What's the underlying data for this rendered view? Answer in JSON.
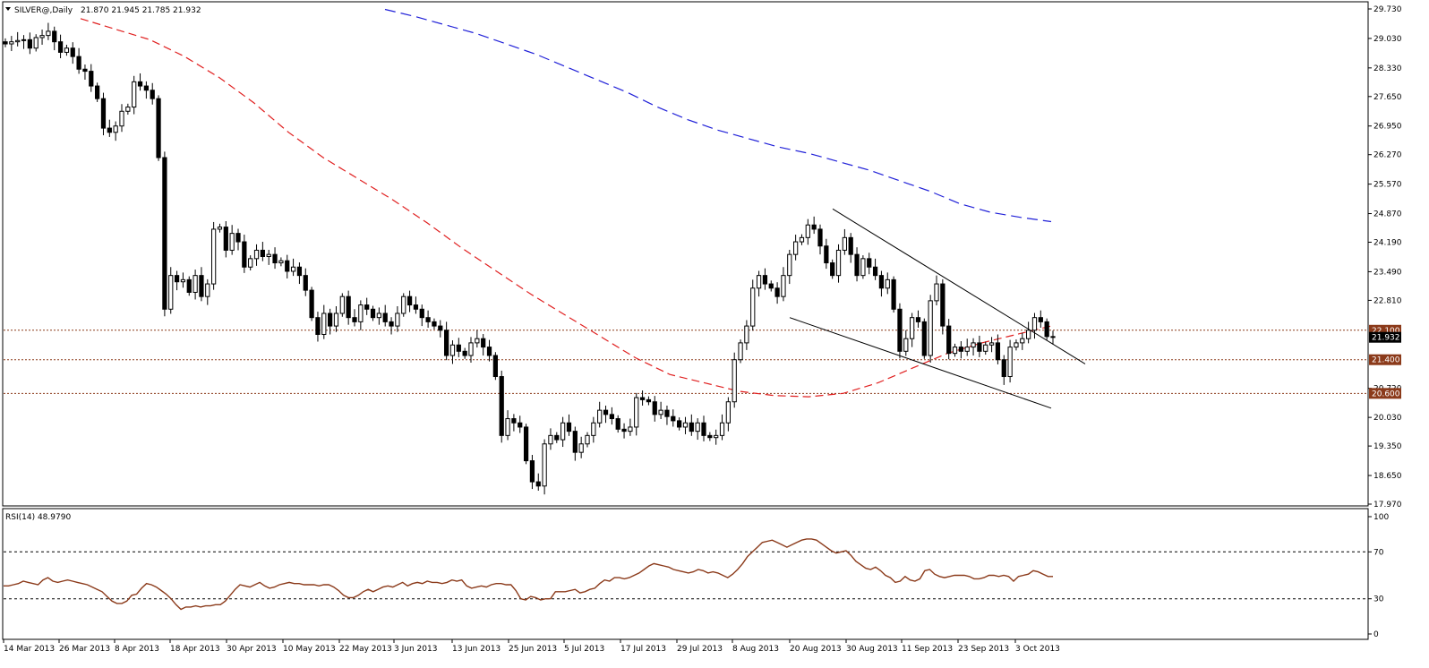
{
  "header": {
    "symbol_label": "SILVER@,Daily",
    "ohlc_text": "21.870 21.945 21.785 21.932",
    "rsi_label": "RSI(14) 48.9790"
  },
  "colors": {
    "ma_short": "#e02020",
    "ma_long": "#2020d8",
    "rsi_line": "#8b3a1a",
    "level_fill": "#8b3a1a",
    "current_fill": "#000000"
  },
  "chart_data": [
    {
      "type": "candlestick",
      "title": "SILVER@,Daily",
      "ohlc_readout": "21.870 21.945 21.785 21.932",
      "ylim": [
        17.97,
        29.73
      ],
      "y_ticks": [
        "29.730",
        "29.030",
        "28.330",
        "27.650",
        "26.950",
        "26.270",
        "25.570",
        "24.870",
        "24.190",
        "23.490",
        "22.810",
        "22.100",
        "21.932",
        "21.400",
        "20.720",
        "20.600",
        "20.030",
        "19.350",
        "18.650",
        "17.970"
      ],
      "x_ticks": [
        "14 Mar 2013",
        "26 Mar 2013",
        "8 Apr 2013",
        "18 Apr 2013",
        "30 Apr 2013",
        "10 May 2013",
        "22 May 2013",
        "3 Jun 2013",
        "13 Jun 2013",
        "25 Jun 2013",
        "5 Jul 2013",
        "17 Jul 2013",
        "29 Jul 2013",
        "8 Aug 2013",
        "20 Aug 2013",
        "30 Aug 2013",
        "11 Sep 2013",
        "23 Sep 2013",
        "3 Oct 2013"
      ],
      "horizontal_levels": [
        {
          "value": 22.1,
          "label": "22.100"
        },
        {
          "value": 21.4,
          "label": "21.400"
        },
        {
          "value": 20.6,
          "label": "20.600"
        }
      ],
      "current_price": {
        "value": 21.932,
        "label": "21.932"
      },
      "closes": [
        28.9,
        28.95,
        28.98,
        29.0,
        28.8,
        29.05,
        29.1,
        29.2,
        28.95,
        28.7,
        28.8,
        28.6,
        28.3,
        28.25,
        27.9,
        27.6,
        26.9,
        26.8,
        26.95,
        27.3,
        27.4,
        28.0,
        27.9,
        27.8,
        27.6,
        26.2,
        22.6,
        23.4,
        23.25,
        23.3,
        23.0,
        23.4,
        22.9,
        23.2,
        24.5,
        24.55,
        24.0,
        24.4,
        24.2,
        23.6,
        23.8,
        24.0,
        23.85,
        23.9,
        23.7,
        23.75,
        23.5,
        23.6,
        23.4,
        23.05,
        22.4,
        22.0,
        22.5,
        22.2,
        22.5,
        22.9,
        22.4,
        22.3,
        22.7,
        22.6,
        22.4,
        22.5,
        22.3,
        22.2,
        22.5,
        22.9,
        22.7,
        22.6,
        22.4,
        22.3,
        22.2,
        22.1,
        21.5,
        21.75,
        21.6,
        21.5,
        21.8,
        21.9,
        21.7,
        21.5,
        21.0,
        19.6,
        20.0,
        19.9,
        19.8,
        19.0,
        18.5,
        18.4,
        19.4,
        19.6,
        19.5,
        19.9,
        19.7,
        19.2,
        19.4,
        19.6,
        19.9,
        20.2,
        20.1,
        20.0,
        19.75,
        19.7,
        19.8,
        20.5,
        20.45,
        20.4,
        20.1,
        20.2,
        20.05,
        19.95,
        19.8,
        19.9,
        19.7,
        19.9,
        19.6,
        19.55,
        19.6,
        19.9,
        20.4,
        21.4,
        21.8,
        22.2,
        23.1,
        23.4,
        23.2,
        23.1,
        22.9,
        23.4,
        23.9,
        24.2,
        24.3,
        24.6,
        24.5,
        24.1,
        23.7,
        23.4,
        24.0,
        24.3,
        23.9,
        23.4,
        23.8,
        23.6,
        23.4,
        23.1,
        23.3,
        22.6,
        21.6,
        21.9,
        22.4,
        22.3,
        21.5,
        22.8,
        23.2,
        22.2,
        21.55,
        21.7,
        21.6,
        21.7,
        21.8,
        21.6,
        21.75,
        21.8,
        21.4,
        21.0,
        21.7,
        21.8,
        21.9,
        22.1,
        22.4,
        22.3,
        21.95,
        21.93
      ],
      "ma_50": [
        29.5,
        29.25,
        29.0,
        28.6,
        28.1,
        27.5,
        26.8,
        26.2,
        25.7,
        25.2,
        24.65,
        24.05,
        23.5,
        22.95,
        22.45,
        21.95,
        21.45,
        21.05,
        20.85,
        20.65,
        20.55,
        20.52,
        20.6,
        20.85,
        21.2,
        21.55,
        21.8,
        22.0,
        22.2
      ],
      "ma_200": [
        29.72,
        29.55,
        29.35,
        29.15,
        28.9,
        28.65,
        28.35,
        28.05,
        27.75,
        27.4,
        27.1,
        26.85,
        26.65,
        26.45,
        26.3,
        26.1,
        25.9,
        25.65,
        25.4,
        25.1,
        24.9,
        24.78,
        24.68
      ],
      "trendlines": [
        {
          "name": "upper",
          "from": [
            24.98,
            0
          ],
          "to": [
            21.3,
            1
          ]
        },
        {
          "name": "lower",
          "from": [
            22.4,
            0
          ],
          "to": [
            20.25,
            1
          ]
        }
      ]
    },
    {
      "type": "line",
      "title": "RSI(14) 48.9790",
      "ylim": [
        0,
        100
      ],
      "y_ticks": [
        100,
        70,
        30,
        0
      ],
      "levels": [
        70,
        30
      ],
      "values": [
        41,
        41,
        42,
        43,
        45,
        44,
        43,
        42,
        46,
        48,
        45,
        44,
        45,
        46,
        45,
        44,
        43,
        42,
        40,
        38,
        36,
        32,
        28,
        26,
        26,
        28,
        33,
        34,
        39,
        43,
        42,
        40,
        37,
        34,
        30,
        25,
        21,
        23,
        23,
        24,
        23,
        24,
        24,
        25,
        25,
        28,
        33,
        38,
        42,
        41,
        40,
        42,
        44,
        41,
        39,
        40,
        42,
        43,
        44,
        43,
        43,
        42,
        42,
        42,
        41,
        42,
        42,
        40,
        37,
        33,
        31,
        31,
        33,
        36,
        38,
        36,
        38,
        40,
        41,
        40,
        42,
        44,
        41,
        43,
        44,
        43,
        45,
        44,
        44,
        43,
        44,
        46,
        45,
        46,
        41,
        39,
        40,
        41,
        40,
        42,
        43,
        43,
        42,
        42,
        37,
        30,
        29,
        32,
        31,
        29,
        30,
        30,
        36,
        36,
        36,
        37,
        38,
        35,
        36,
        38,
        39,
        43,
        46,
        45,
        48,
        48,
        47,
        48,
        50,
        52,
        55,
        58,
        60,
        59,
        58,
        57,
        55,
        54,
        53,
        52,
        53,
        55,
        54,
        52,
        53,
        52,
        50,
        48,
        51,
        55,
        60,
        66,
        70,
        74,
        78,
        79,
        80,
        78,
        76,
        74,
        76,
        78,
        80,
        81,
        81,
        80,
        77,
        74,
        71,
        69,
        70,
        71,
        67,
        62,
        59,
        56,
        55,
        57,
        54,
        50,
        48,
        44,
        45,
        49,
        46,
        45,
        47,
        54,
        55,
        51,
        49,
        48,
        49,
        50,
        50,
        50,
        49,
        47,
        47,
        48,
        50,
        50,
        49,
        50,
        49,
        45,
        49,
        50,
        51,
        54,
        53,
        51,
        49,
        49
      ]
    }
  ]
}
